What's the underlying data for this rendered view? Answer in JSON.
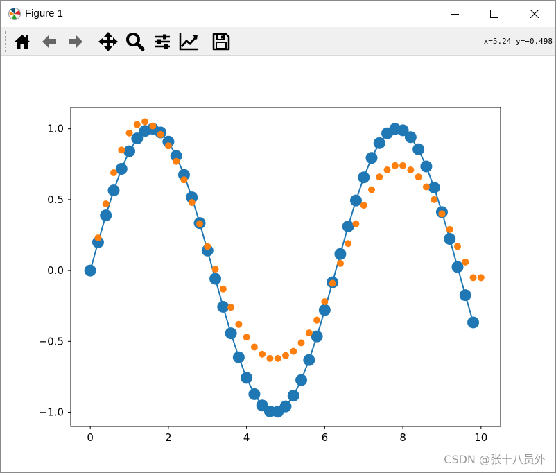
{
  "window": {
    "title": "Figure 1",
    "controls": [
      "minimize",
      "maximize",
      "close"
    ]
  },
  "toolbar": {
    "buttons": [
      {
        "icon": "home-icon",
        "tooltip": "Home"
      },
      {
        "icon": "back-arrow-icon",
        "tooltip": "Back"
      },
      {
        "icon": "forward-arrow-icon",
        "tooltip": "Forward"
      },
      {
        "icon": "pan-move-icon",
        "tooltip": "Pan"
      },
      {
        "icon": "zoom-magnifier-icon",
        "tooltip": "Zoom"
      },
      {
        "icon": "subplots-config-icon",
        "tooltip": "Subplots"
      },
      {
        "icon": "edit-axes-icon",
        "tooltip": "Customize"
      },
      {
        "icon": "save-floppy-icon",
        "tooltip": "Save"
      }
    ],
    "coordinates": "x=5.24 y=−0.498"
  },
  "watermark": "CSDN @张十八员外",
  "chart_data": {
    "type": "line",
    "title": "",
    "xlabel": "",
    "ylabel": "",
    "xlim": [
      -0.5,
      10.5
    ],
    "ylim": [
      -1.1,
      1.15
    ],
    "xticks": [
      0,
      2,
      4,
      6,
      8,
      10
    ],
    "xtick_labels": [
      "0",
      "2",
      "4",
      "6",
      "8",
      "10"
    ],
    "yticks": [
      1.0,
      0.5,
      0.0,
      -0.5,
      -1.0
    ],
    "ytick_labels": [
      "1.0",
      "0.5",
      "0.0",
      "−0.5",
      "−1.0"
    ],
    "grid": false,
    "series": [
      {
        "style": "line-with-large-markers",
        "color": "#1f77b4",
        "x": [
          0,
          0.2,
          0.4,
          0.6,
          0.8,
          1.0,
          1.2,
          1.4,
          1.6,
          1.8,
          2.0,
          2.2,
          2.4,
          2.6,
          2.8,
          3.0,
          3.2,
          3.4,
          3.6,
          3.8,
          4.0,
          4.2,
          4.4,
          4.6,
          4.8,
          5.0,
          5.2,
          5.4,
          5.6,
          5.8,
          6.0,
          6.2,
          6.4,
          6.6,
          6.8,
          7.0,
          7.2,
          7.4,
          7.6,
          7.8,
          8.0,
          8.2,
          8.4,
          8.6,
          8.8,
          9.0,
          9.2,
          9.4,
          9.6,
          9.8
        ],
        "y": [
          0.0,
          0.199,
          0.389,
          0.565,
          0.717,
          0.841,
          0.932,
          0.985,
          1.0,
          0.974,
          0.909,
          0.808,
          0.675,
          0.516,
          0.335,
          0.141,
          -0.058,
          -0.256,
          -0.443,
          -0.612,
          -0.757,
          -0.872,
          -0.952,
          -0.994,
          -0.996,
          -0.959,
          -0.883,
          -0.773,
          -0.631,
          -0.465,
          -0.279,
          -0.083,
          0.117,
          0.312,
          0.494,
          0.657,
          0.794,
          0.899,
          0.968,
          0.999,
          0.989,
          0.941,
          0.855,
          0.734,
          0.585,
          0.412,
          0.223,
          0.025,
          -0.174,
          -0.366
        ]
      },
      {
        "style": "scatter-small-markers",
        "color": "#ff7f0e",
        "x": [
          0.2,
          0.4,
          0.6,
          0.8,
          1.0,
          1.2,
          1.4,
          1.6,
          1.8,
          2.0,
          2.2,
          2.4,
          2.6,
          2.8,
          3.0,
          3.2,
          3.4,
          3.6,
          3.8,
          4.0,
          4.2,
          4.4,
          4.6,
          4.8,
          5.0,
          5.2,
          5.4,
          5.6,
          5.8,
          6.0,
          6.2,
          6.4,
          6.6,
          6.8,
          7.0,
          7.2,
          7.4,
          7.6,
          7.8,
          8.0,
          8.2,
          8.4,
          8.6,
          8.8,
          9.0,
          9.2,
          9.4,
          9.6,
          9.8,
          10.0
        ],
        "y": [
          0.23,
          0.47,
          0.69,
          0.85,
          0.97,
          1.03,
          1.05,
          1.02,
          0.96,
          0.88,
          0.77,
          0.64,
          0.48,
          0.33,
          0.17,
          0.01,
          -0.13,
          -0.26,
          -0.38,
          -0.47,
          -0.54,
          -0.59,
          -0.62,
          -0.62,
          -0.6,
          -0.57,
          -0.51,
          -0.44,
          -0.35,
          -0.22,
          -0.09,
          0.05,
          0.19,
          0.33,
          0.46,
          0.57,
          0.66,
          0.71,
          0.74,
          0.74,
          0.71,
          0.66,
          0.59,
          0.5,
          0.4,
          0.29,
          0.17,
          0.06,
          -0.05,
          -0.05
        ]
      }
    ]
  }
}
